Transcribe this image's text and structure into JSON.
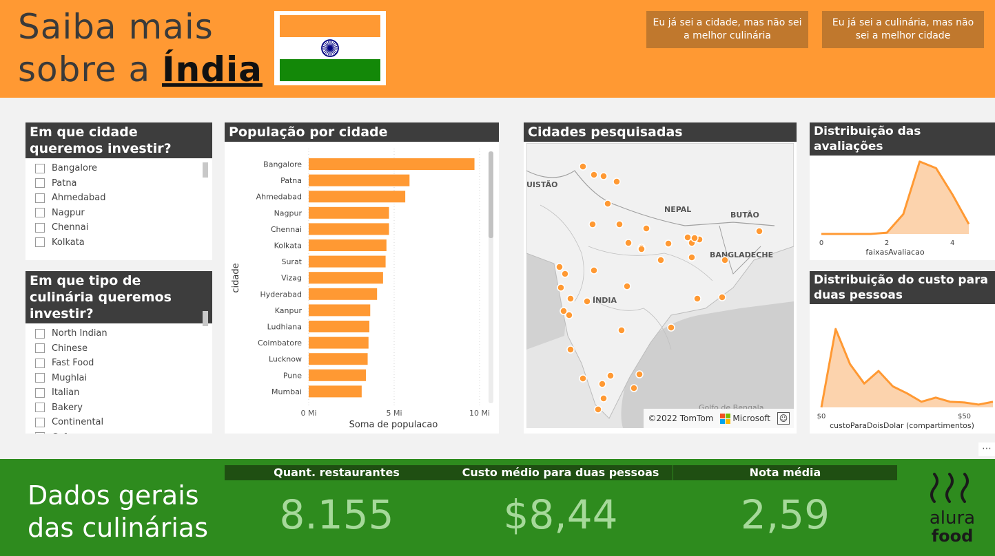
{
  "header": {
    "title_line1": "Saiba mais",
    "title_prefix": "sobre a",
    "title_country": "Índia",
    "button_city": "Eu já sei a cidade, mas não sei a melhor culinária",
    "button_cuisine": "Eu já sei a culinária, mas não sei a melhor cidade",
    "flag_colors": {
      "saffron": "#ff9933",
      "white": "#ffffff",
      "green": "#138808",
      "chakra": "#000080"
    }
  },
  "city_slicer": {
    "title": "Em que cidade queremos investir?",
    "items": [
      "Bangalore",
      "Patna",
      "Ahmedabad",
      "Nagpur",
      "Chennai",
      "Kolkata"
    ]
  },
  "cuisine_slicer": {
    "title": "Em que tipo de culinária queremos investir?",
    "items": [
      "North Indian",
      "Chinese",
      "Fast Food",
      "Mughlai",
      "Italian",
      "Bakery",
      "Continental",
      "Cafe"
    ]
  },
  "population_chart": {
    "title": "População por cidade",
    "chart_data": {
      "type": "bar",
      "orientation": "horizontal",
      "categories": [
        "Bangalore",
        "Patna",
        "Ahmedabad",
        "Nagpur",
        "Chennai",
        "Kolkata",
        "Surat",
        "Vizag",
        "Hyderabad",
        "Kanpur",
        "Ludhiana",
        "Coimbatore",
        "Lucknow",
        "Pune",
        "Mumbai"
      ],
      "values": [
        9.7,
        5.9,
        5.65,
        4.7,
        4.7,
        4.55,
        4.5,
        4.35,
        4.0,
        3.6,
        3.55,
        3.5,
        3.45,
        3.35,
        3.1
      ],
      "xlabel": "Soma de populacao",
      "ylabel": "cidade",
      "xticks": [
        "0 Mi",
        "5 Mi",
        "10 Mi"
      ],
      "xlim": [
        0,
        10
      ],
      "color": "#ff9933"
    }
  },
  "map": {
    "title": "Cidades pesquisadas",
    "labels": {
      "paquistao": "UISTÃO",
      "nepal": "NEPAL",
      "butao": "BUTÃO",
      "bangladeche": "BANGLADECHE",
      "india": "ÍNDIA",
      "golfo": "Golfo de Bengala"
    },
    "attribution_tomtom": "©2022 TomTom",
    "attribution_microsoft": "Microsoft",
    "marker_color": "#ff9933"
  },
  "rating_chart": {
    "title": "Distribuição das avaliações",
    "chart_data": {
      "type": "area",
      "x": [
        0,
        1,
        1.5,
        2,
        2.5,
        3,
        3.5,
        4,
        4.5
      ],
      "values": [
        0,
        0,
        0,
        2,
        30,
        110,
        100,
        60,
        15
      ],
      "xlabel": "faixasAvaliacao",
      "xticks": [
        "0",
        "2",
        "4"
      ],
      "color": "#ff9933"
    }
  },
  "cost_chart": {
    "title": "Distribuição do custo para duas pessoas",
    "chart_data": {
      "type": "area",
      "x": [
        0,
        5,
        10,
        15,
        20,
        25,
        30,
        35,
        40,
        45,
        50,
        55,
        60
      ],
      "values": [
        0,
        112,
        62,
        34,
        52,
        30,
        20,
        8,
        14,
        8,
        7,
        4,
        8
      ],
      "xlabel": "custoParaDoisDolar (compartimentos)",
      "xticks": [
        "$0",
        "$50"
      ],
      "color": "#ff9933"
    }
  },
  "footer": {
    "title_line1": "Dados gerais",
    "title_line2": "das culinárias",
    "kpis": [
      {
        "label": "Quant. restaurantes",
        "value": "8.155"
      },
      {
        "label": "Custo médio para duas pessoas",
        "value": "$8,44"
      },
      {
        "label": "Nota média",
        "value": "2,59"
      }
    ],
    "logo_text_top": "alura",
    "logo_text_bottom": "food"
  }
}
